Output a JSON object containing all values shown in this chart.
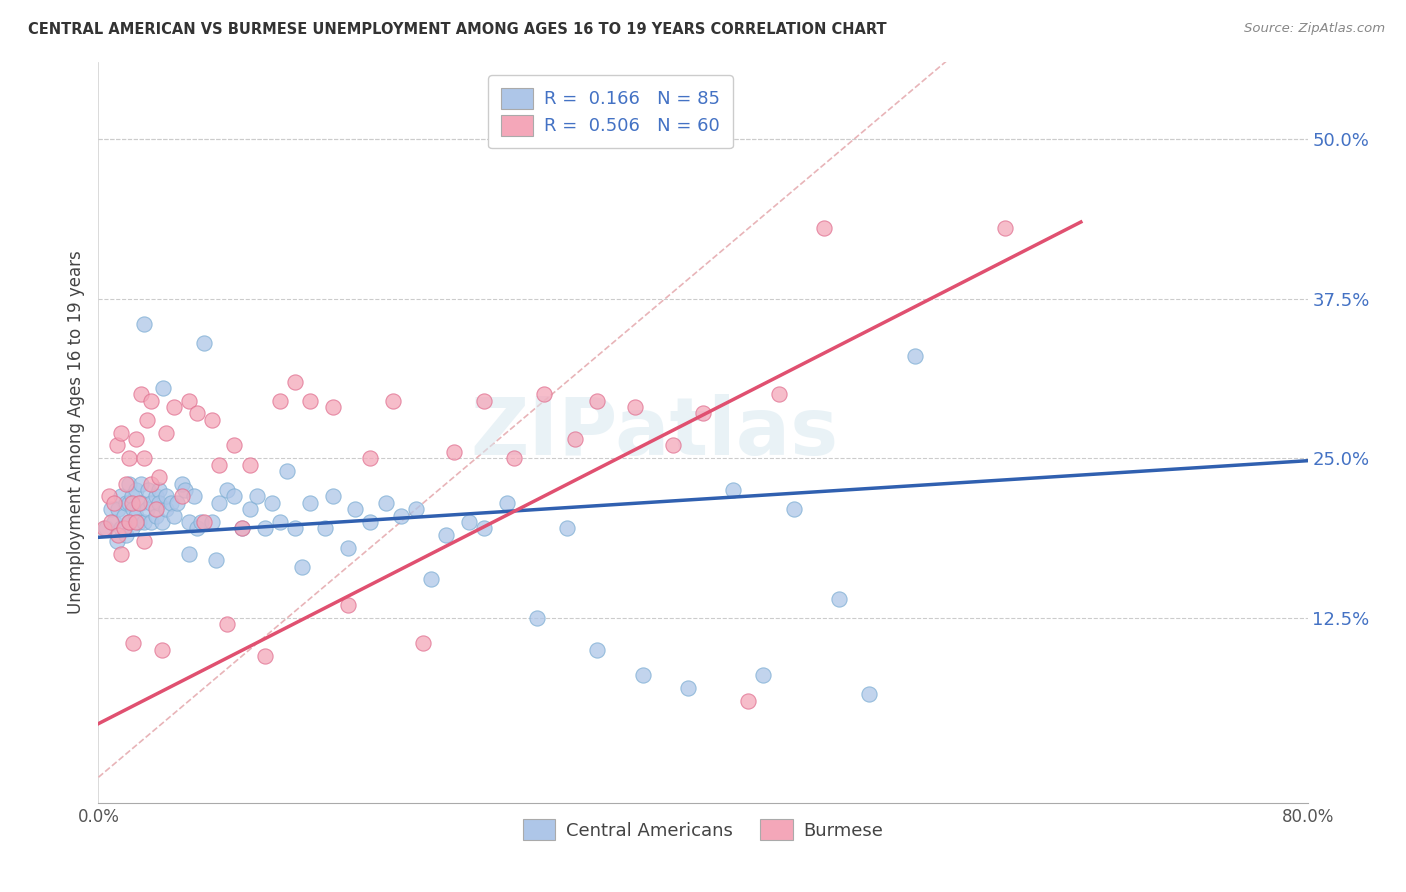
{
  "title": "CENTRAL AMERICAN VS BURMESE UNEMPLOYMENT AMONG AGES 16 TO 19 YEARS CORRELATION CHART",
  "source": "Source: ZipAtlas.com",
  "ylabel": "Unemployment Among Ages 16 to 19 years",
  "ytick_labels": [
    "",
    "12.5%",
    "25.0%",
    "37.5%",
    "50.0%"
  ],
  "ytick_values": [
    0.0,
    0.125,
    0.25,
    0.375,
    0.5
  ],
  "xlim": [
    0.0,
    0.8
  ],
  "ylim": [
    -0.02,
    0.56
  ],
  "watermark": "ZIPatlas",
  "legend_entries": [
    {
      "label_prefix": "R = ",
      "R_val": "0.166",
      "label_mid": "   N = ",
      "N_val": "85",
      "color": "#aec6e8"
    },
    {
      "label_prefix": "R = ",
      "R_val": "0.506",
      "label_mid": "   N = ",
      "N_val": "60",
      "color": "#f4a7b9"
    }
  ],
  "central_americans": {
    "color": "#aec6e8",
    "edge_color": "#7fafd4",
    "x": [
      0.005,
      0.008,
      0.01,
      0.012,
      0.013,
      0.015,
      0.015,
      0.017,
      0.018,
      0.018,
      0.02,
      0.02,
      0.02,
      0.022,
      0.022,
      0.023,
      0.025,
      0.025,
      0.027,
      0.028,
      0.028,
      0.03,
      0.03,
      0.032,
      0.033,
      0.035,
      0.035,
      0.038,
      0.038,
      0.04,
      0.04,
      0.042,
      0.043,
      0.045,
      0.045,
      0.048,
      0.05,
      0.052,
      0.055,
      0.057,
      0.06,
      0.06,
      0.063,
      0.065,
      0.068,
      0.07,
      0.075,
      0.078,
      0.08,
      0.085,
      0.09,
      0.095,
      0.1,
      0.105,
      0.11,
      0.115,
      0.12,
      0.125,
      0.13,
      0.135,
      0.14,
      0.15,
      0.155,
      0.165,
      0.17,
      0.18,
      0.19,
      0.2,
      0.21,
      0.22,
      0.23,
      0.245,
      0.255,
      0.27,
      0.29,
      0.31,
      0.33,
      0.36,
      0.39,
      0.42,
      0.44,
      0.46,
      0.49,
      0.51,
      0.54
    ],
    "y": [
      0.195,
      0.21,
      0.2,
      0.185,
      0.21,
      0.195,
      0.22,
      0.205,
      0.215,
      0.19,
      0.2,
      0.215,
      0.23,
      0.195,
      0.22,
      0.21,
      0.205,
      0.225,
      0.2,
      0.215,
      0.23,
      0.2,
      0.355,
      0.21,
      0.225,
      0.2,
      0.215,
      0.205,
      0.22,
      0.225,
      0.215,
      0.2,
      0.305,
      0.21,
      0.22,
      0.215,
      0.205,
      0.215,
      0.23,
      0.225,
      0.2,
      0.175,
      0.22,
      0.195,
      0.2,
      0.34,
      0.2,
      0.17,
      0.215,
      0.225,
      0.22,
      0.195,
      0.21,
      0.22,
      0.195,
      0.215,
      0.2,
      0.24,
      0.195,
      0.165,
      0.215,
      0.195,
      0.22,
      0.18,
      0.21,
      0.2,
      0.215,
      0.205,
      0.21,
      0.155,
      0.19,
      0.2,
      0.195,
      0.215,
      0.125,
      0.195,
      0.1,
      0.08,
      0.07,
      0.225,
      0.08,
      0.21,
      0.14,
      0.065,
      0.33
    ]
  },
  "burmese": {
    "color": "#f4a7b9",
    "edge_color": "#e07090",
    "x": [
      0.004,
      0.007,
      0.008,
      0.01,
      0.012,
      0.013,
      0.015,
      0.015,
      0.017,
      0.018,
      0.02,
      0.02,
      0.022,
      0.023,
      0.025,
      0.025,
      0.027,
      0.028,
      0.03,
      0.03,
      0.032,
      0.035,
      0.035,
      0.038,
      0.04,
      0.042,
      0.045,
      0.05,
      0.055,
      0.06,
      0.065,
      0.07,
      0.075,
      0.08,
      0.085,
      0.09,
      0.095,
      0.1,
      0.11,
      0.12,
      0.13,
      0.14,
      0.155,
      0.165,
      0.18,
      0.195,
      0.215,
      0.235,
      0.255,
      0.275,
      0.295,
      0.315,
      0.33,
      0.355,
      0.38,
      0.4,
      0.43,
      0.45,
      0.48,
      0.6
    ],
    "y": [
      0.195,
      0.22,
      0.2,
      0.215,
      0.26,
      0.19,
      0.27,
      0.175,
      0.195,
      0.23,
      0.25,
      0.2,
      0.215,
      0.105,
      0.265,
      0.2,
      0.215,
      0.3,
      0.25,
      0.185,
      0.28,
      0.295,
      0.23,
      0.21,
      0.235,
      0.1,
      0.27,
      0.29,
      0.22,
      0.295,
      0.285,
      0.2,
      0.28,
      0.245,
      0.12,
      0.26,
      0.195,
      0.245,
      0.095,
      0.295,
      0.31,
      0.295,
      0.29,
      0.135,
      0.25,
      0.295,
      0.105,
      0.255,
      0.295,
      0.25,
      0.3,
      0.265,
      0.295,
      0.29,
      0.26,
      0.285,
      0.06,
      0.3,
      0.43,
      0.43
    ]
  },
  "diagonal_line": {
    "x": [
      0.0,
      0.8
    ],
    "y": [
      0.0,
      0.8
    ],
    "color": "#e8b4b8",
    "linestyle": "--",
    "linewidth": 1.2
  },
  "blue_trend": {
    "x": [
      0.0,
      0.8
    ],
    "y": [
      0.188,
      0.248
    ],
    "color": "#3060b0",
    "linewidth": 2.5
  },
  "pink_trend": {
    "x": [
      0.0,
      0.65
    ],
    "y": [
      0.042,
      0.435
    ],
    "color": "#e05070",
    "linewidth": 2.5
  },
  "xtick_positions": [
    0.0,
    0.8
  ],
  "xtick_labels": [
    "0.0%",
    "80.0%"
  ],
  "grid_yticks": [
    0.125,
    0.25,
    0.375,
    0.5
  ],
  "bottom_legend": [
    {
      "label": "Central Americans",
      "color": "#aec6e8"
    },
    {
      "label": "Burmese",
      "color": "#f4a7b9"
    }
  ]
}
